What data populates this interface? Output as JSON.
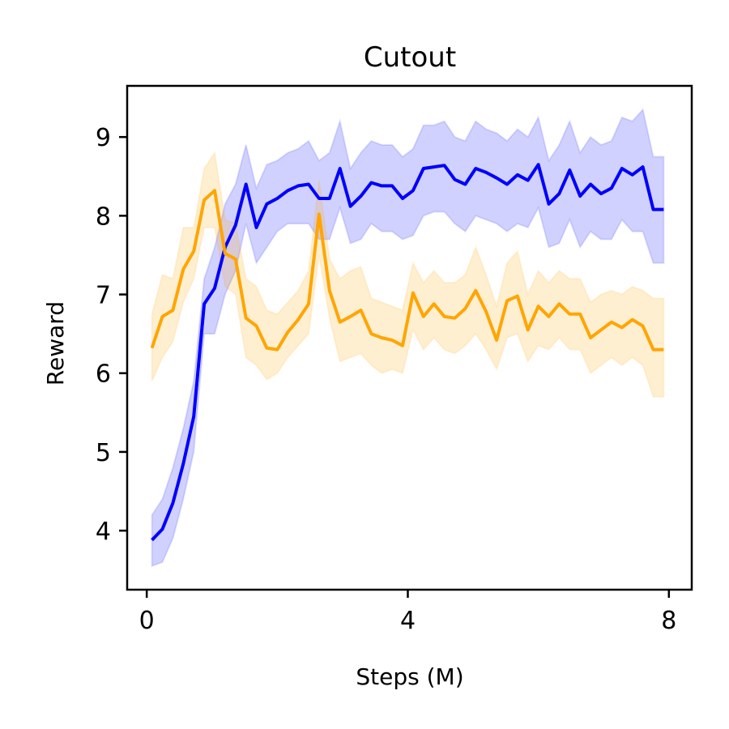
{
  "chart_data": {
    "type": "line",
    "title": "Cutout",
    "xlabel": "Steps (M)",
    "ylabel": "Reward",
    "xlim": [
      -0.3,
      8.35
    ],
    "ylim": [
      3.25,
      9.65
    ],
    "xticks": [
      0,
      4,
      8
    ],
    "xtick_labels": [
      "0",
      "4",
      "8"
    ],
    "yticks": [
      4,
      5,
      6,
      7,
      8,
      9
    ],
    "ytick_labels": [
      "4",
      "5",
      "6",
      "7",
      "8",
      "9"
    ],
    "grid": false,
    "legend": "none",
    "x": [
      0.08,
      0.24,
      0.4,
      0.56,
      0.72,
      0.88,
      1.04,
      1.2,
      1.36,
      1.52,
      1.68,
      1.84,
      2.0,
      2.16,
      2.32,
      2.48,
      2.64,
      2.8,
      2.96,
      3.12,
      3.28,
      3.44,
      3.6,
      3.76,
      3.92,
      4.08,
      4.24,
      4.4,
      4.56,
      4.72,
      4.88,
      5.04,
      5.2,
      5.36,
      5.52,
      5.68,
      5.84,
      6.0,
      6.16,
      6.32,
      6.48,
      6.64,
      6.8,
      6.96,
      7.12,
      7.28,
      7.44,
      7.6,
      7.76,
      7.92
    ],
    "series": [
      {
        "color": "#0000ff",
        "values": [
          3.88,
          4.02,
          4.35,
          4.85,
          5.45,
          6.88,
          7.08,
          7.6,
          7.88,
          8.4,
          7.85,
          8.15,
          8.22,
          8.32,
          8.38,
          8.4,
          8.22,
          8.22,
          8.6,
          8.12,
          8.25,
          8.42,
          8.38,
          8.38,
          8.22,
          8.32,
          8.6,
          8.62,
          8.64,
          8.46,
          8.4,
          8.6,
          8.55,
          8.48,
          8.4,
          8.52,
          8.45,
          8.65,
          8.15,
          8.28,
          8.58,
          8.25,
          8.4,
          8.28,
          8.35,
          8.6,
          8.52,
          8.62,
          8.08,
          8.08
        ],
        "lower": [
          3.55,
          3.6,
          3.9,
          4.4,
          5.0,
          6.5,
          6.5,
          7.0,
          7.3,
          7.9,
          7.4,
          7.6,
          7.8,
          7.9,
          7.9,
          7.9,
          7.7,
          7.7,
          8.1,
          7.65,
          7.7,
          7.9,
          7.8,
          7.8,
          7.7,
          7.75,
          8.0,
          8.05,
          8.05,
          7.9,
          7.8,
          8.0,
          7.95,
          7.9,
          7.8,
          7.9,
          7.85,
          8.1,
          7.6,
          7.65,
          7.95,
          7.6,
          7.8,
          7.7,
          7.7,
          7.95,
          7.8,
          7.8,
          7.4,
          7.4
        ],
        "upper": [
          4.2,
          4.4,
          4.8,
          5.3,
          5.9,
          7.2,
          7.6,
          8.15,
          8.4,
          8.9,
          8.35,
          8.65,
          8.7,
          8.8,
          8.85,
          8.95,
          8.7,
          8.8,
          9.2,
          8.6,
          8.8,
          8.95,
          8.9,
          8.9,
          8.75,
          8.85,
          9.15,
          9.15,
          9.2,
          9.0,
          8.95,
          9.2,
          9.1,
          9.05,
          8.95,
          9.1,
          9.0,
          9.25,
          8.7,
          8.9,
          9.2,
          8.8,
          9.0,
          8.9,
          8.95,
          9.25,
          9.2,
          9.35,
          8.75,
          8.75
        ]
      },
      {
        "color": "#ffa500",
        "values": [
          6.32,
          6.72,
          6.8,
          7.32,
          7.55,
          8.2,
          8.32,
          7.52,
          7.45,
          6.7,
          6.6,
          6.32,
          6.3,
          6.52,
          6.68,
          6.88,
          8.02,
          7.05,
          6.65,
          6.72,
          6.8,
          6.5,
          6.45,
          6.42,
          6.35,
          7.02,
          6.72,
          6.88,
          6.72,
          6.7,
          6.82,
          7.05,
          6.78,
          6.42,
          6.92,
          6.98,
          6.55,
          6.85,
          6.72,
          6.88,
          6.75,
          6.75,
          6.45,
          6.55,
          6.65,
          6.58,
          6.68,
          6.6,
          6.3,
          6.3
        ],
        "lower": [
          5.9,
          6.2,
          6.4,
          6.9,
          7.2,
          7.85,
          7.85,
          7.1,
          7.0,
          6.2,
          6.1,
          5.92,
          6.0,
          6.2,
          6.35,
          6.5,
          7.5,
          6.7,
          6.15,
          6.2,
          6.25,
          6.1,
          6.0,
          6.05,
          6.0,
          6.55,
          6.3,
          6.45,
          6.3,
          6.25,
          6.35,
          6.5,
          6.3,
          6.05,
          6.45,
          6.5,
          6.15,
          6.35,
          6.3,
          6.45,
          6.3,
          6.3,
          6.0,
          6.1,
          6.2,
          6.1,
          6.2,
          6.1,
          5.7,
          5.7
        ],
        "upper": [
          6.75,
          7.25,
          7.2,
          7.85,
          7.85,
          8.6,
          8.8,
          7.95,
          7.9,
          7.2,
          7.1,
          6.8,
          6.75,
          6.9,
          7.05,
          7.3,
          8.45,
          7.45,
          7.2,
          7.3,
          7.35,
          6.95,
          6.9,
          6.85,
          6.8,
          7.4,
          7.15,
          7.3,
          7.15,
          7.15,
          7.25,
          7.6,
          7.25,
          6.85,
          7.4,
          7.55,
          7.0,
          7.3,
          7.15,
          7.3,
          7.2,
          7.2,
          6.9,
          7.0,
          7.05,
          7.0,
          7.1,
          7.05,
          6.95,
          6.95
        ]
      }
    ]
  }
}
